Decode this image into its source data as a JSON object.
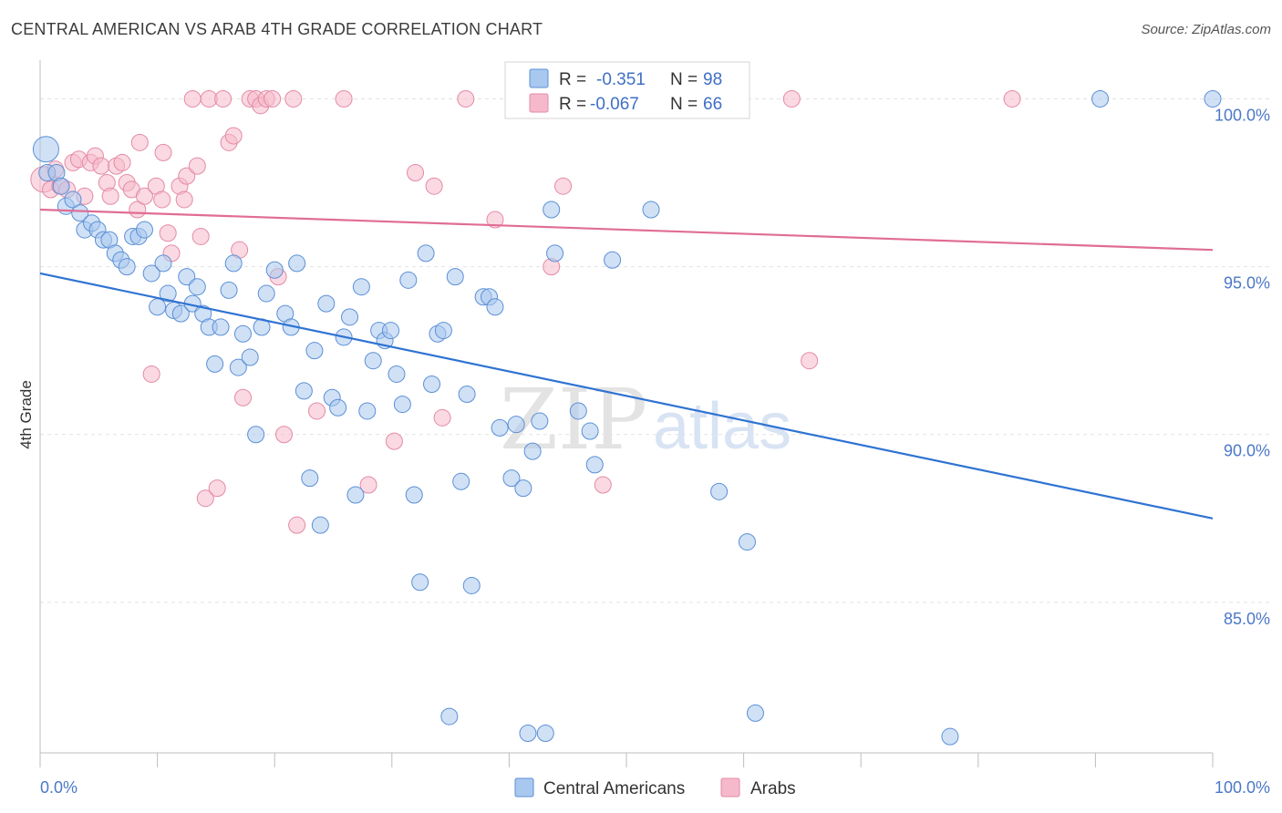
{
  "title": "CENTRAL AMERICAN VS ARAB 4TH GRADE CORRELATION CHART",
  "source": "Source: ZipAtlas.com",
  "watermark": {
    "zip": "ZIP",
    "atlas": "atlas"
  },
  "colors": {
    "blue_fill": "#a9c8ef",
    "blue_stroke": "#5b8fd6",
    "blue_line": "#2f73d2",
    "pink_fill": "#f5b9cb",
    "pink_stroke": "#e48aa6",
    "pink_line": "#e06d94",
    "axis_text": "#4b78c8",
    "grid": "#e2e2e2"
  },
  "legend": {
    "rows": [
      {
        "r_label": "R =",
        "r_value": "-0.351",
        "n_label": "N =",
        "n_value": "98"
      },
      {
        "r_label": "R =",
        "r_value": "-0.067",
        "n_label": "N =",
        "n_value": "66"
      }
    ]
  },
  "chart_data": {
    "type": "scatter",
    "ylabel": "4th Grade",
    "xlim": [
      0,
      100
    ],
    "ylim": [
      80.0,
      100.8
    ],
    "x_tick_labels": [
      "0.0%",
      "100.0%"
    ],
    "y_ticks": [
      {
        "value": 100,
        "label": "100.0%"
      },
      {
        "value": 95,
        "label": "95.0%"
      },
      {
        "value": 90,
        "label": "90.0%"
      },
      {
        "value": 85,
        "label": "85.0%"
      }
    ],
    "legend_position": "top-center",
    "grid": true,
    "series": [
      {
        "name": "Central Americans",
        "trend": {
          "x": [
            0,
            100
          ],
          "y": [
            94.8,
            87.5
          ]
        },
        "points": [
          [
            0.5,
            98.5
          ],
          [
            0.6,
            97.8
          ],
          [
            1.4,
            97.8
          ],
          [
            1.8,
            97.4
          ],
          [
            2.2,
            96.8
          ],
          [
            2.8,
            97.0
          ],
          [
            3.4,
            96.6
          ],
          [
            3.8,
            96.1
          ],
          [
            4.4,
            96.3
          ],
          [
            4.9,
            96.1
          ],
          [
            5.4,
            95.8
          ],
          [
            5.9,
            95.8
          ],
          [
            6.4,
            95.4
          ],
          [
            6.9,
            95.2
          ],
          [
            7.4,
            95.0
          ],
          [
            7.9,
            95.9
          ],
          [
            8.4,
            95.9
          ],
          [
            8.9,
            96.1
          ],
          [
            9.5,
            94.8
          ],
          [
            10.0,
            93.8
          ],
          [
            10.5,
            95.1
          ],
          [
            10.9,
            94.2
          ],
          [
            11.4,
            93.7
          ],
          [
            12.0,
            93.6
          ],
          [
            12.5,
            94.7
          ],
          [
            13.0,
            93.9
          ],
          [
            13.4,
            94.4
          ],
          [
            13.9,
            93.6
          ],
          [
            14.4,
            93.2
          ],
          [
            14.9,
            92.1
          ],
          [
            15.4,
            93.2
          ],
          [
            16.1,
            94.3
          ],
          [
            16.5,
            95.1
          ],
          [
            16.9,
            92.0
          ],
          [
            17.3,
            93.0
          ],
          [
            17.9,
            92.3
          ],
          [
            18.4,
            90.0
          ],
          [
            18.9,
            93.2
          ],
          [
            19.3,
            94.2
          ],
          [
            20.0,
            94.9
          ],
          [
            20.9,
            93.6
          ],
          [
            21.4,
            93.2
          ],
          [
            21.9,
            95.1
          ],
          [
            22.5,
            91.3
          ],
          [
            23.0,
            88.7
          ],
          [
            23.4,
            92.5
          ],
          [
            23.9,
            87.3
          ],
          [
            24.4,
            93.9
          ],
          [
            24.9,
            91.1
          ],
          [
            25.4,
            90.8
          ],
          [
            25.9,
            92.9
          ],
          [
            26.4,
            93.5
          ],
          [
            26.9,
            88.2
          ],
          [
            27.4,
            94.4
          ],
          [
            27.9,
            90.7
          ],
          [
            28.4,
            92.2
          ],
          [
            28.9,
            93.1
          ],
          [
            29.4,
            92.8
          ],
          [
            29.9,
            93.1
          ],
          [
            30.4,
            91.8
          ],
          [
            30.9,
            90.9
          ],
          [
            31.4,
            94.6
          ],
          [
            31.9,
            88.2
          ],
          [
            32.4,
            85.6
          ],
          [
            32.9,
            95.4
          ],
          [
            33.4,
            91.5
          ],
          [
            33.9,
            93.0
          ],
          [
            34.4,
            93.1
          ],
          [
            34.9,
            81.6
          ],
          [
            35.4,
            94.7
          ],
          [
            35.9,
            88.6
          ],
          [
            36.4,
            91.2
          ],
          [
            36.8,
            85.5
          ],
          [
            37.8,
            94.1
          ],
          [
            38.3,
            94.1
          ],
          [
            38.8,
            93.8
          ],
          [
            39.2,
            90.2
          ],
          [
            40.2,
            88.7
          ],
          [
            40.6,
            90.3
          ],
          [
            41.2,
            88.4
          ],
          [
            41.6,
            81.1
          ],
          [
            42.0,
            89.5
          ],
          [
            42.6,
            90.4
          ],
          [
            43.1,
            81.1
          ],
          [
            43.6,
            96.7
          ],
          [
            43.9,
            95.4
          ],
          [
            45.9,
            90.7
          ],
          [
            46.9,
            90.1
          ],
          [
            47.3,
            89.1
          ],
          [
            47.9,
            100.0
          ],
          [
            48.8,
            95.2
          ],
          [
            52.1,
            96.7
          ],
          [
            57.9,
            88.3
          ],
          [
            60.3,
            86.8
          ],
          [
            61.0,
            81.7
          ],
          [
            77.6,
            81.0
          ],
          [
            90.4,
            100.0
          ],
          [
            100.0,
            100.0
          ]
        ]
      },
      {
        "name": "Arabs",
        "trend": {
          "x": [
            0,
            100
          ],
          "y": [
            96.7,
            95.5
          ]
        },
        "points": [
          [
            0.3,
            97.6
          ],
          [
            0.9,
            97.3
          ],
          [
            1.3,
            97.9
          ],
          [
            1.7,
            97.4
          ],
          [
            2.3,
            97.3
          ],
          [
            2.8,
            98.1
          ],
          [
            3.3,
            98.2
          ],
          [
            3.8,
            97.1
          ],
          [
            4.3,
            98.1
          ],
          [
            4.7,
            98.3
          ],
          [
            5.2,
            98.0
          ],
          [
            5.7,
            97.5
          ],
          [
            6.0,
            97.1
          ],
          [
            6.5,
            98.0
          ],
          [
            7.0,
            98.1
          ],
          [
            7.4,
            97.5
          ],
          [
            7.8,
            97.3
          ],
          [
            8.3,
            96.7
          ],
          [
            8.5,
            98.7
          ],
          [
            8.9,
            97.1
          ],
          [
            9.5,
            91.8
          ],
          [
            9.9,
            97.4
          ],
          [
            10.4,
            97.0
          ],
          [
            10.5,
            98.4
          ],
          [
            10.9,
            96.0
          ],
          [
            11.2,
            95.4
          ],
          [
            11.9,
            97.4
          ],
          [
            12.3,
            97.0
          ],
          [
            12.5,
            97.7
          ],
          [
            13.0,
            100.0
          ],
          [
            13.4,
            98.0
          ],
          [
            13.7,
            95.9
          ],
          [
            14.1,
            88.1
          ],
          [
            14.4,
            100.0
          ],
          [
            15.1,
            88.4
          ],
          [
            15.6,
            100.0
          ],
          [
            16.1,
            98.7
          ],
          [
            16.5,
            98.9
          ],
          [
            17.0,
            95.5
          ],
          [
            17.3,
            91.1
          ],
          [
            17.9,
            100.0
          ],
          [
            18.4,
            100.0
          ],
          [
            18.8,
            99.8
          ],
          [
            19.3,
            100.0
          ],
          [
            19.8,
            100.0
          ],
          [
            20.3,
            94.7
          ],
          [
            20.8,
            90.0
          ],
          [
            21.6,
            100.0
          ],
          [
            21.9,
            87.3
          ],
          [
            23.6,
            90.7
          ],
          [
            25.9,
            100.0
          ],
          [
            28.0,
            88.5
          ],
          [
            30.2,
            89.8
          ],
          [
            32.0,
            97.8
          ],
          [
            33.6,
            97.4
          ],
          [
            34.3,
            90.5
          ],
          [
            36.3,
            100.0
          ],
          [
            38.8,
            96.4
          ],
          [
            43.6,
            95.0
          ],
          [
            44.6,
            97.4
          ],
          [
            47.3,
            100.0
          ],
          [
            48.0,
            88.5
          ],
          [
            55.6,
            100.0
          ],
          [
            64.1,
            100.0
          ],
          [
            65.6,
            92.2
          ],
          [
            82.9,
            100.0
          ]
        ]
      }
    ]
  }
}
